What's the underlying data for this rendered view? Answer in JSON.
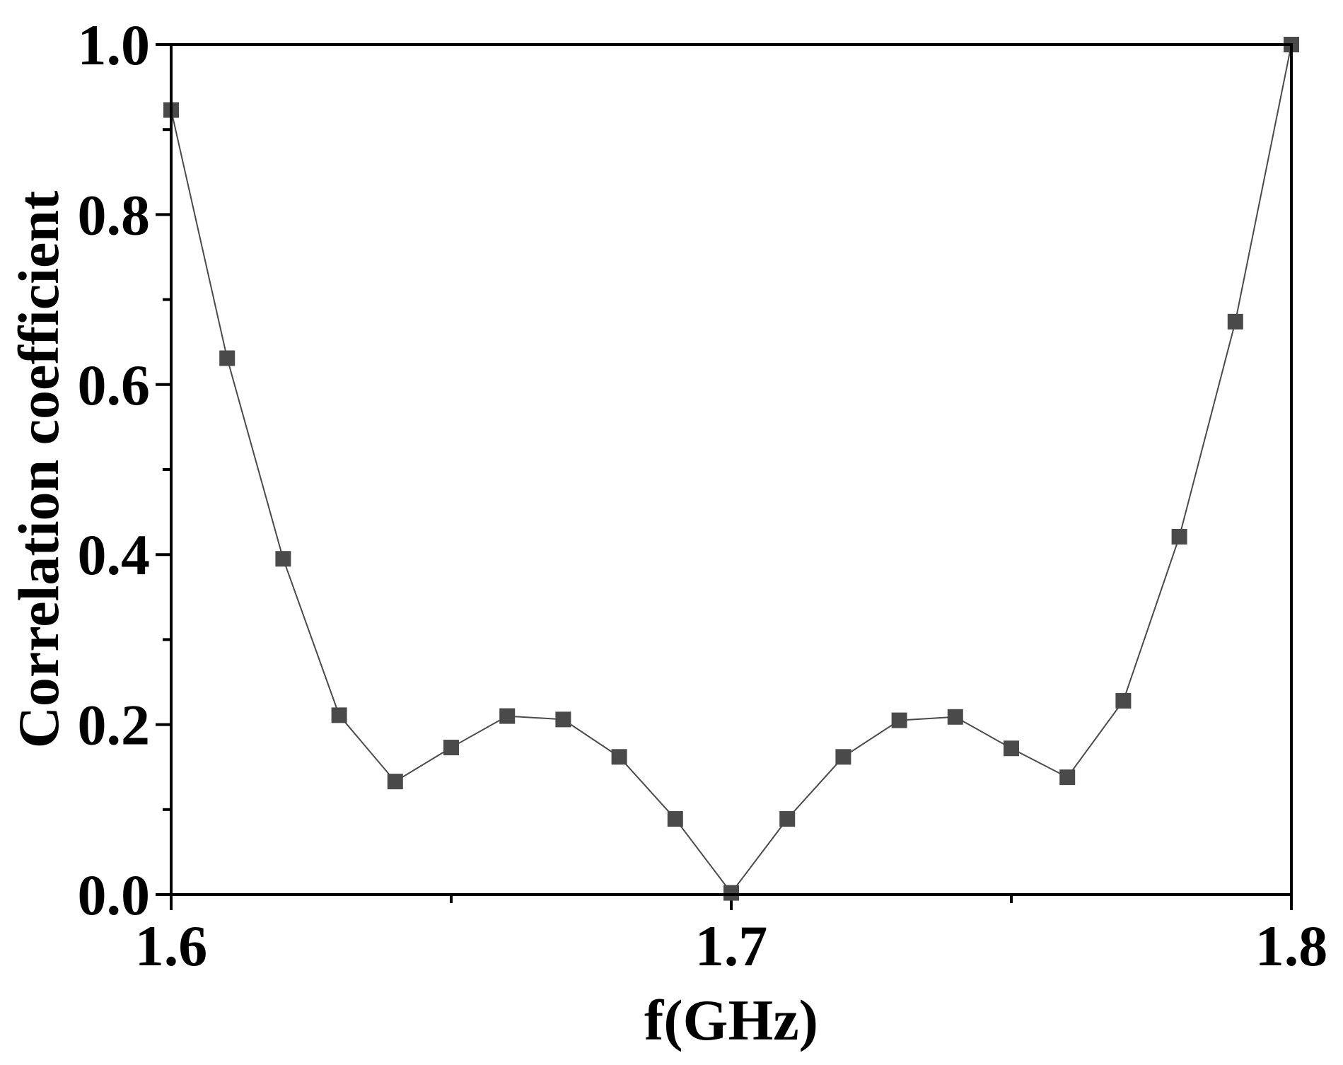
{
  "chart_data": {
    "type": "line",
    "title": "",
    "xlabel": "f(GHz)",
    "ylabel": "Correlation coefficient",
    "xlim": [
      1.6,
      1.8
    ],
    "ylim": [
      0.0,
      1.0
    ],
    "x_ticks": [
      "1.6",
      "1.7",
      "1.8"
    ],
    "y_ticks": [
      "0.0",
      "0.2",
      "0.4",
      "0.6",
      "0.8",
      "1.0"
    ],
    "grid": false,
    "marker": "square",
    "colors": {
      "line": "#4a4a4a",
      "marker": "#4a4a4a",
      "axis": "#000000"
    },
    "series": [
      {
        "x": [
          1.6,
          1.61,
          1.62,
          1.63,
          1.64,
          1.65,
          1.66,
          1.67,
          1.68,
          1.69,
          1.7,
          1.71,
          1.72,
          1.73,
          1.74,
          1.75,
          1.76,
          1.77,
          1.78,
          1.79,
          1.8
        ],
        "y": [
          0.923,
          0.631,
          0.395,
          0.211,
          0.133,
          0.173,
          0.21,
          0.206,
          0.162,
          0.089,
          0.002,
          0.089,
          0.162,
          0.205,
          0.209,
          0.172,
          0.138,
          0.228,
          0.421,
          0.674,
          1.0
        ]
      }
    ]
  }
}
